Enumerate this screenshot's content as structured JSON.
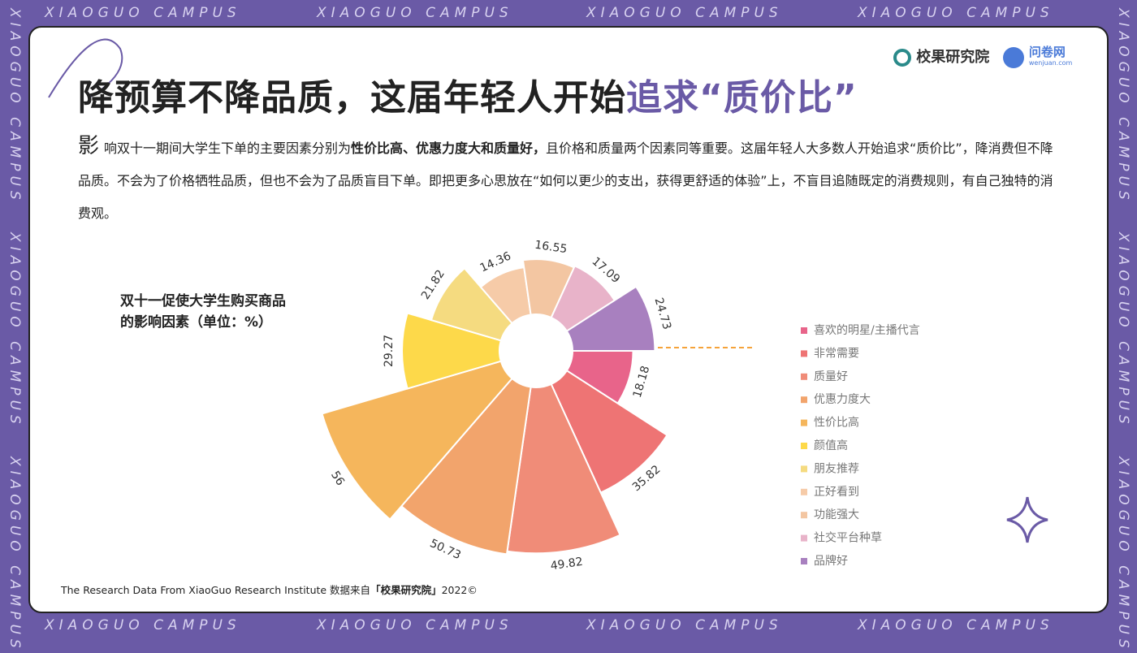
{
  "frame_text": "XIAOGUO CAMPUS",
  "logos": {
    "brand": "校果研究院",
    "partner": "问卷网",
    "partner_url": "wenjuan.com"
  },
  "header": {
    "title_main": "降预算不降品质，这届年轻人开始",
    "title_highlight": "追求“质价比”"
  },
  "intro": {
    "drop_cap": "影",
    "text_1": "响双十一期间大学生下单的主要因素分别为",
    "text_bold": "性价比高、优惠力度大和质量好，",
    "text_2": "且价格和质量两个因素同等重要。这届年轻人大多数人开始追求“质价比”，降消费但不降品质。不会为了价格牺牲品质，但也不会为了品质盲目下单。即把更多心思放在“如何以更少的支出，获得更舒适的体验”上，不盲目追随既定的消费规则，有自己独特的消费观。"
  },
  "chart_data": {
    "type": "rose",
    "title": "双十一促使大学生购买商品的影响因素（单位：%）",
    "categories": [
      "喜欢的明星/主播代言",
      "非常需要",
      "质量好",
      "优惠力度大",
      "性价比高",
      "颜值高",
      "朋友推荐",
      "正好看到",
      "功能强大",
      "社交平台种草",
      "品牌好"
    ],
    "values": [
      18.18,
      35.82,
      49.82,
      50.73,
      56,
      29.27,
      21.82,
      14.36,
      16.55,
      17.09,
      24.73
    ],
    "colors": [
      "#e8648a",
      "#ee7474",
      "#f08c78",
      "#f2a46c",
      "#f5b65c",
      "#fdd94a",
      "#f5db80",
      "#f6cba8",
      "#f3c6a2",
      "#e8b3c9",
      "#a880bf"
    ]
  },
  "footer": {
    "text_1": "The Research Data From XiaoGuo Research Institute 数据来自",
    "text_bold": "「校果研究院」",
    "text_2": "2022©"
  }
}
